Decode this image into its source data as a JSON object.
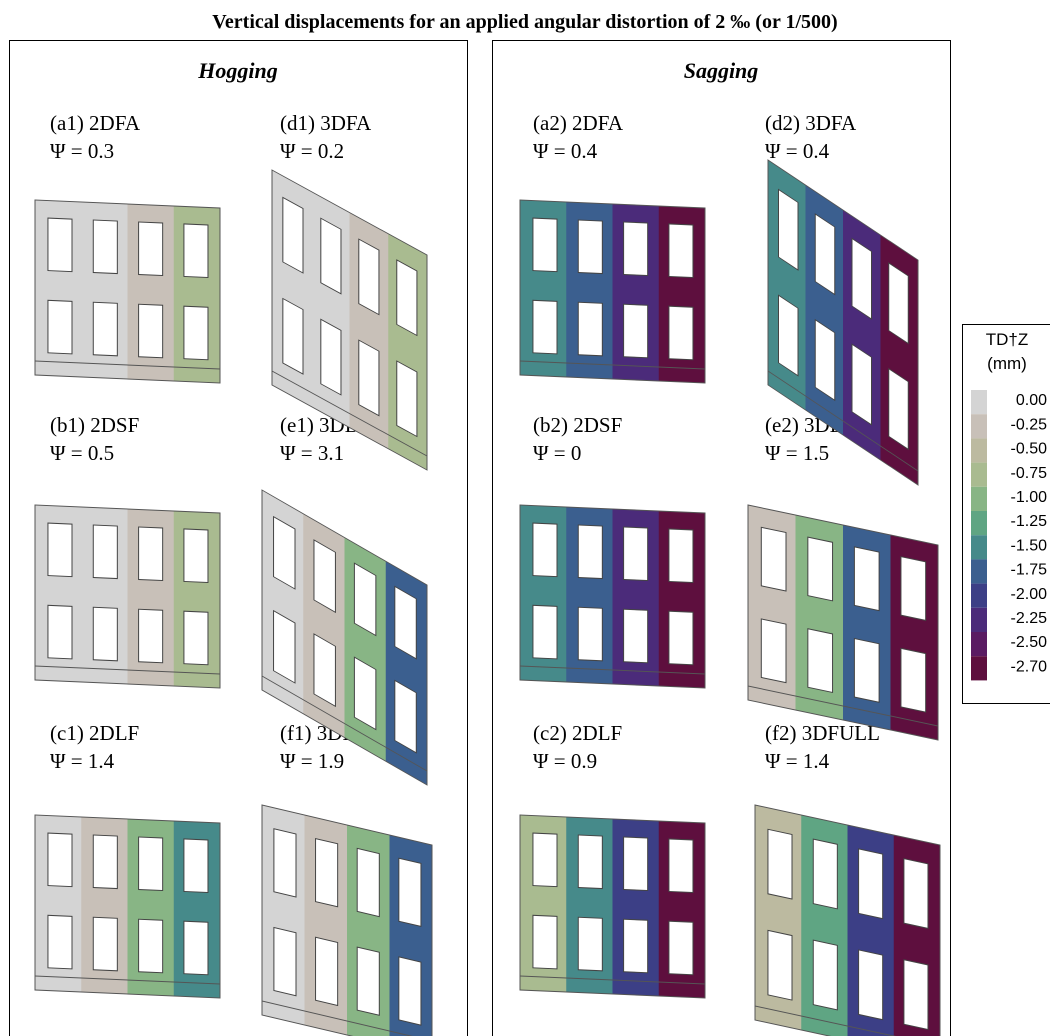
{
  "title": "Vertical displacements for an applied angular distortion of 2 ‰ (or 1/500)",
  "panels": [
    {
      "heading": "Hogging",
      "items": [
        {
          "label": "(a1) 2DFA",
          "psi": "Ψ = 0.3"
        },
        {
          "label": "(d1) 3DFA",
          "psi": "Ψ = 0.2"
        },
        {
          "label": "(b1) 2DSF",
          "psi": "Ψ = 0.5"
        },
        {
          "label": "(e1) 3DBOX",
          "psi": "Ψ = 3.1"
        },
        {
          "label": "(c1) 2DLF",
          "psi": "Ψ = 1.4"
        },
        {
          "label": "(f1) 3DFULL",
          "psi": "Ψ = 1.9"
        }
      ]
    },
    {
      "heading": "Sagging",
      "items": [
        {
          "label": "(a2) 2DFA",
          "psi": "Ψ = 0.4"
        },
        {
          "label": "(d2) 3DFA",
          "psi": "Ψ = 0.4"
        },
        {
          "label": "(b2) 2DSF",
          "psi": "Ψ = 0"
        },
        {
          "label": "(e2) 3DBOX",
          "psi": "Ψ = 1.5"
        },
        {
          "label": "(c2) 2DLF",
          "psi": "Ψ = 0.9"
        },
        {
          "label": "(f2) 3DFULL",
          "psi": "Ψ = 1.4"
        }
      ]
    }
  ],
  "legend": {
    "title": "TD†Z",
    "unit": "(mm)",
    "labels": [
      "0.00",
      "-0.25",
      "-0.50",
      "-0.75",
      "-1.00",
      "-1.25",
      "-1.50",
      "-1.75",
      "-2.00",
      "-2.25",
      "-2.50",
      "-2.70"
    ],
    "colors": [
      "#d4d4d4",
      "#c8c0b8",
      "#bcbaa0",
      "#a9bb90",
      "#88b585",
      "#5fa583",
      "#468a8a",
      "#3b5f8f",
      "#3c3f86",
      "#4b2b7a",
      "#5a1b62",
      "#5e0f3e"
    ]
  }
}
